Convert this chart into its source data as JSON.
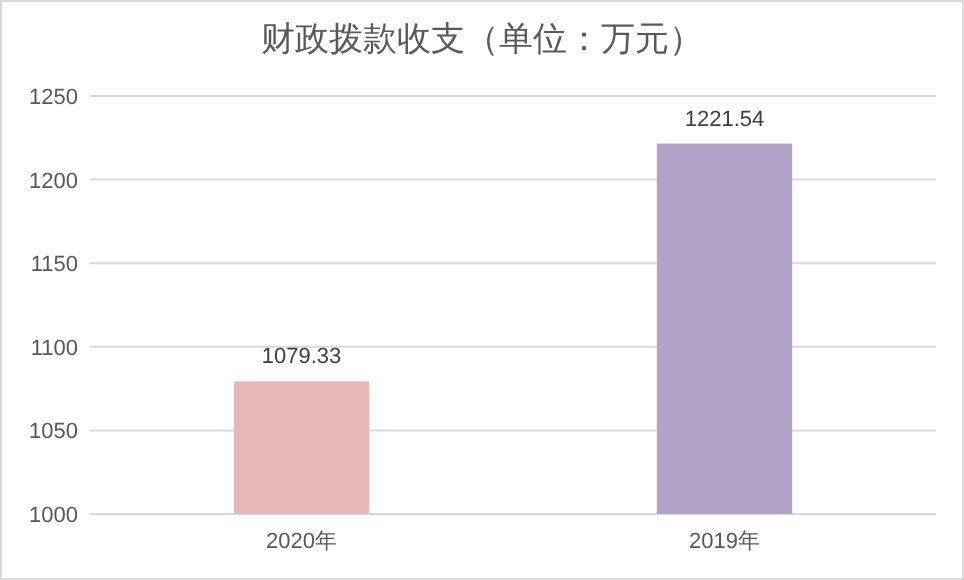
{
  "chart_data": {
    "type": "bar",
    "title": "财政拨款收支（单位：万元）",
    "categories": [
      "2020年",
      "2019年"
    ],
    "values": [
      1079.33,
      1221.54
    ],
    "colors": [
      "#e6b8b7",
      "#b3a2c7"
    ],
    "ylim": [
      1000,
      1250
    ],
    "yticks": [
      1000,
      1050,
      1100,
      1150,
      1200,
      1250
    ],
    "grid": "y",
    "data_labels": true
  }
}
